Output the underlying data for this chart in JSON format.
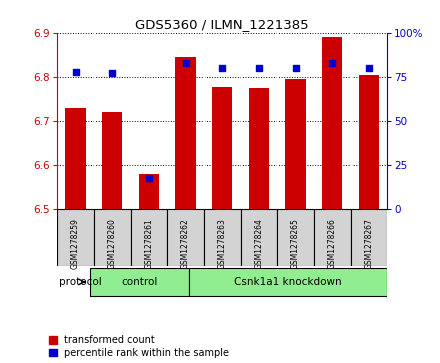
{
  "title": "GDS5360 / ILMN_1221385",
  "samples": [
    "GSM1278259",
    "GSM1278260",
    "GSM1278261",
    "GSM1278262",
    "GSM1278263",
    "GSM1278264",
    "GSM1278265",
    "GSM1278266",
    "GSM1278267"
  ],
  "bar_values": [
    6.73,
    6.72,
    6.58,
    6.845,
    6.778,
    6.775,
    6.795,
    6.89,
    6.805
  ],
  "percentile_values": [
    78,
    77,
    18,
    83,
    80,
    80,
    80,
    83,
    80
  ],
  "bar_bottom": 6.5,
  "ylim_left": [
    6.5,
    6.9
  ],
  "ylim_right": [
    0,
    100
  ],
  "yticks_left": [
    6.5,
    6.6,
    6.7,
    6.8,
    6.9
  ],
  "yticks_right": [
    0,
    25,
    50,
    75,
    100
  ],
  "bar_color": "#cc0000",
  "dot_color": "#0000cc",
  "n_control": 3,
  "control_label": "control",
  "knockdown_label": "Csnk1a1 knockdown",
  "protocol_label": "protocol",
  "legend_bar_label": "transformed count",
  "legend_dot_label": "percentile rank within the sample",
  "group_color": "#90ee90",
  "label_bg_color": "#d3d3d3",
  "background_color": "#ffffff",
  "plot_bg_color": "#ffffff"
}
